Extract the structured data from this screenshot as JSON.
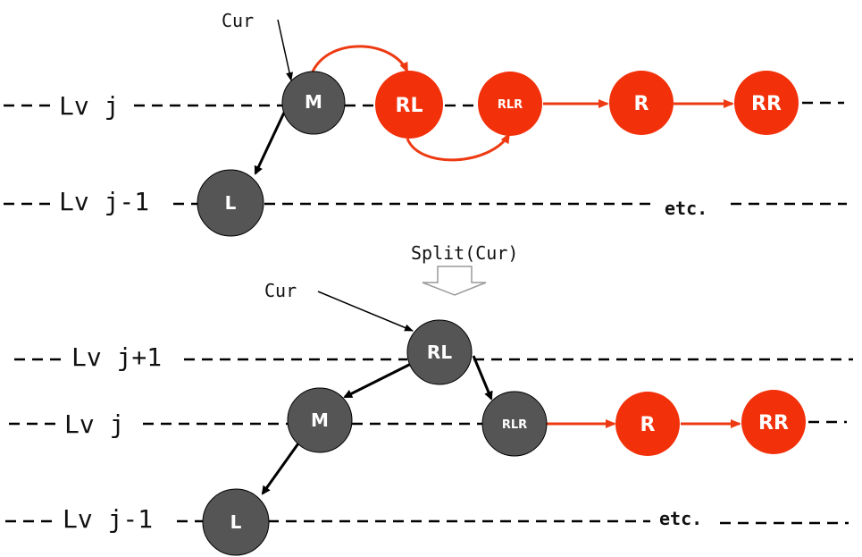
{
  "colors": {
    "dark_node": "#555555",
    "red_node": "#f2300a",
    "red_edge": "#ee3a12",
    "black": "#000000"
  },
  "before": {
    "cur_label": "Cur",
    "levels": [
      "Lv j",
      "Lv j-1"
    ],
    "etc": "etc.",
    "nodes": {
      "M": "M",
      "RL": "RL",
      "RLR": "RLR",
      "R": "R",
      "RR": "RR",
      "L": "L"
    }
  },
  "operation": {
    "label": "Split(Cur)",
    "icon": "down-arrow-icon"
  },
  "after": {
    "cur_label": "Cur",
    "levels": [
      "Lv j+1",
      "Lv j",
      "Lv j-1"
    ],
    "etc": "etc.",
    "nodes": {
      "RL": "RL",
      "M": "M",
      "RLR": "RLR",
      "R": "R",
      "RR": "RR",
      "L": "L"
    }
  }
}
